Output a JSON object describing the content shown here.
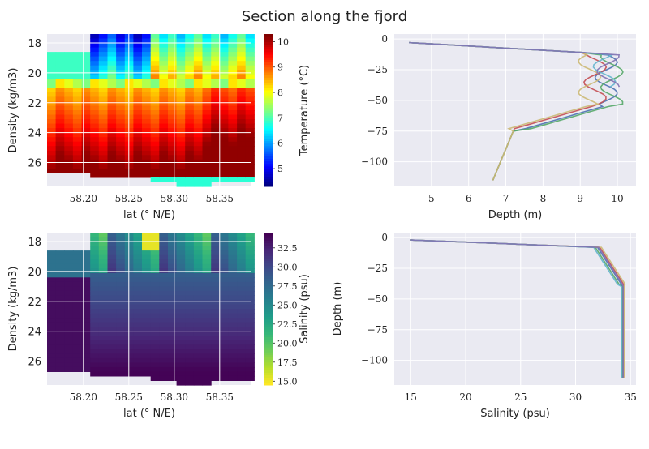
{
  "suptitle": "Section along the fjord",
  "colors": {
    "panel_bg": "#eaeaf2",
    "grid": "#ffffff"
  },
  "profile_colors": [
    "#4c72b0",
    "#c44e52",
    "#55a868",
    "#ccb974",
    "#64b5cd",
    "#8172b2"
  ],
  "chart_data": [
    {
      "type": "heatmap",
      "xlabel": "lat (° N/E)",
      "ylabel": "Density (kg/m3)",
      "xlim": [
        58.16,
        58.385
      ],
      "ylim": [
        27.6,
        17.4
      ],
      "xticks": [
        "58.20",
        "58.25",
        "58.30",
        "58.35"
      ],
      "yticks": [
        "18",
        "20",
        "22",
        "24",
        "26"
      ],
      "colormap": "jet",
      "colorbar": {
        "label": "Temperature (°C)",
        "range": [
          4.3,
          10.3
        ],
        "ticks": [
          "5",
          "6",
          "7",
          "8",
          "9",
          "10"
        ]
      }
    },
    {
      "type": "line",
      "xlabel": "Depth (m)",
      "ylabel": "",
      "xlim": [
        4.0,
        10.5
      ],
      "ylim": [
        -120,
        4
      ],
      "xticks": [
        "5",
        "6",
        "7",
        "8",
        "9",
        "10"
      ],
      "yticks": [
        "0",
        "−25",
        "−50",
        "−75",
        "−100"
      ]
    },
    {
      "type": "heatmap",
      "xlabel": "lat (° N/E)",
      "ylabel": "Density (kg/m3)",
      "xlim": [
        58.16,
        58.385
      ],
      "ylim": [
        27.6,
        17.4
      ],
      "xticks": [
        "58.20",
        "58.25",
        "58.30",
        "58.35"
      ],
      "yticks": [
        "18",
        "20",
        "22",
        "24",
        "26"
      ],
      "colormap": "viridis_r",
      "colorbar": {
        "label": "Salinity (psu)",
        "range": [
          14.5,
          34.5
        ],
        "ticks": [
          "15.0",
          "17.5",
          "20.0",
          "22.5",
          "25.0",
          "27.5",
          "30.0",
          "32.5"
        ]
      }
    },
    {
      "type": "line",
      "xlabel": "Salinity (psu)",
      "ylabel": "Depth (m)",
      "xlim": [
        13.5,
        35.5
      ],
      "ylim": [
        -120,
        4
      ],
      "xticks": [
        "15",
        "20",
        "25",
        "30",
        "35"
      ],
      "yticks": [
        "0",
        "−25",
        "−50",
        "−75",
        "−100"
      ]
    }
  ]
}
